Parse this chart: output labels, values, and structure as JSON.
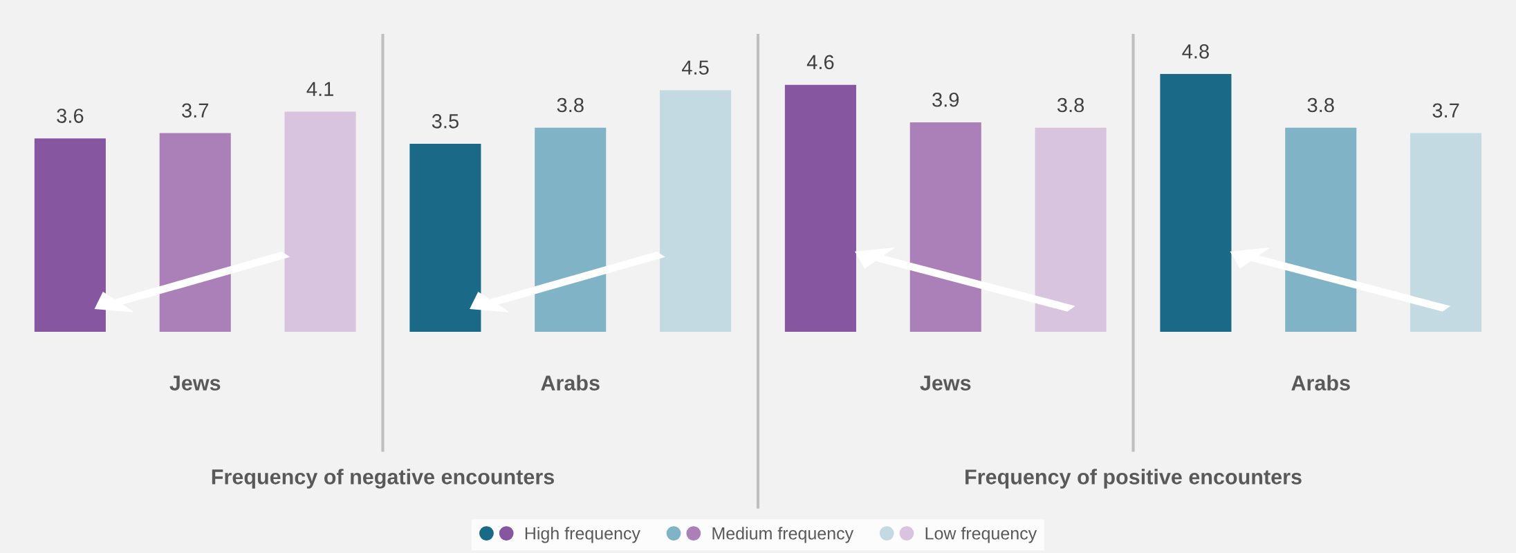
{
  "chart_data": {
    "type": "bar",
    "categories": [
      null,
      "Jews",
      null,
      null,
      "Arabs",
      null,
      null,
      "Jews",
      null,
      null,
      "Arabs",
      null
    ],
    "series": [
      {
        "name": "High frequency",
        "values": [
          3.6,
          null,
          null,
          3.5,
          null,
          null,
          4.6,
          null,
          null,
          4.8,
          null,
          null
        ],
        "colors": [
          "#8756a0",
          null,
          null,
          "#1a6a87",
          null,
          null,
          "#8756a0",
          null,
          null,
          "#1a6a87",
          null,
          null
        ]
      },
      {
        "name": "Medium frequency",
        "values": [
          null,
          3.7,
          null,
          null,
          3.8,
          null,
          null,
          3.9,
          null,
          null,
          3.8,
          null
        ],
        "colors": [
          null,
          "#ab80b8",
          null,
          null,
          "#7fb3c5",
          null,
          null,
          "#ab80b8",
          null,
          null,
          "#7fb3c5",
          null
        ]
      },
      {
        "name": "Low frequency",
        "values": [
          null,
          null,
          4.1,
          null,
          null,
          4.5,
          null,
          null,
          3.8,
          null,
          null,
          3.7
        ],
        "colors": [
          null,
          null,
          "#d9c4df",
          null,
          null,
          "#c4dae2",
          null,
          null,
          "#d9c4df",
          null,
          null,
          "#c4dae2"
        ]
      }
    ],
    "data_labels": true,
    "tick_labels": "x",
    "legend": "bottom",
    "annotations": [
      "Frequency of negative encounters",
      "Frequency of positive encounters"
    ]
  }
}
